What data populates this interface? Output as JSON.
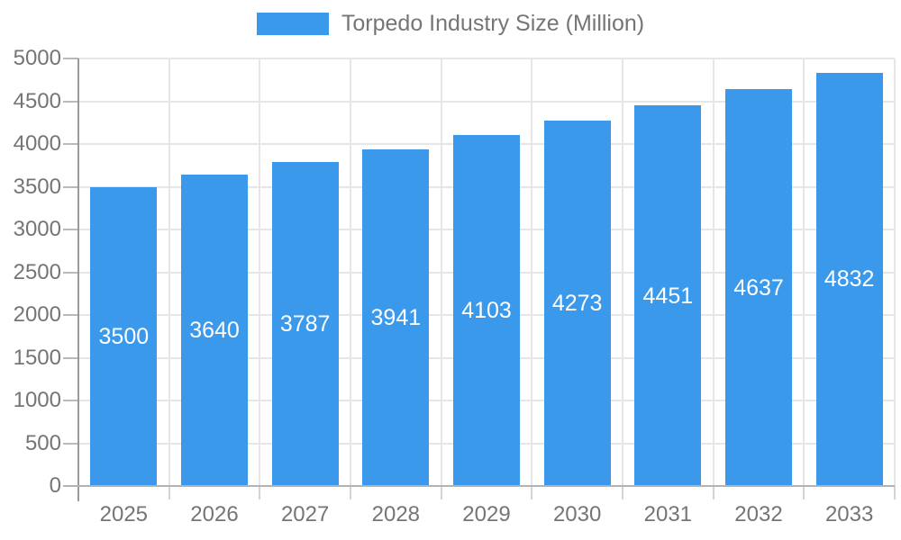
{
  "legend": {
    "label": "Torpedo Industry Size (Million)",
    "swatch_color": "#3b99ec"
  },
  "chart_data": {
    "type": "bar",
    "title": "Torpedo Industry Size (Million)",
    "categories": [
      "2025",
      "2026",
      "2027",
      "2028",
      "2029",
      "2030",
      "2031",
      "2032",
      "2033"
    ],
    "values": [
      3500,
      3640,
      3787,
      3941,
      4103,
      4273,
      4451,
      4637,
      4832
    ],
    "data_labels": [
      "3500",
      "3640",
      "3787",
      "3941",
      "4103",
      "4273",
      "4451",
      "4637",
      "4832"
    ],
    "xlabel": "",
    "ylabel": "",
    "ylim": [
      0,
      5000
    ],
    "ytick_step": 500,
    "ytick_labels": [
      "0",
      "500",
      "1000",
      "1500",
      "2000",
      "2500",
      "3000",
      "3500",
      "4000",
      "4500",
      "5000"
    ],
    "grid": true,
    "legend_position": "top",
    "bar_color": "#3b99ec",
    "data_label_color": "#ffffff",
    "axis_text_color": "#757575",
    "gridline_color": "#e6e6e6",
    "axis_line_color": "#9a9a9a"
  }
}
